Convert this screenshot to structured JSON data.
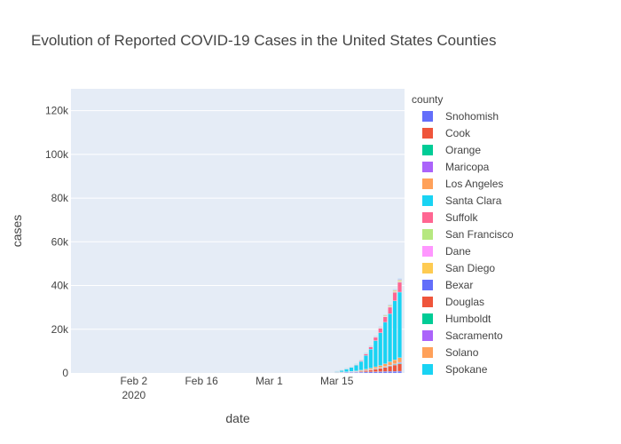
{
  "chart_data": {
    "type": "bar",
    "barmode": "stack",
    "title": "Evolution of Reported COVID-19 Cases in the United States Counties",
    "xlabel": "date",
    "ylabel": "cases",
    "x_ticks": [
      {
        "date": "2020-02-02",
        "label": "Feb 2",
        "sublabel": "2020"
      },
      {
        "date": "2020-02-16",
        "label": "Feb 16",
        "sublabel": ""
      },
      {
        "date": "2020-03-01",
        "label": "Mar 1",
        "sublabel": ""
      },
      {
        "date": "2020-03-15",
        "label": "Mar 15",
        "sublabel": ""
      }
    ],
    "y_ticks": [
      {
        "value": 0,
        "label": "0"
      },
      {
        "value": 20000,
        "label": "20k"
      },
      {
        "value": 40000,
        "label": "40k"
      },
      {
        "value": 60000,
        "label": "60k"
      },
      {
        "value": 80000,
        "label": "80k"
      },
      {
        "value": 100000,
        "label": "100k"
      },
      {
        "value": 120000,
        "label": "120k"
      }
    ],
    "xlim": [
      "2020-01-20",
      "2020-03-29"
    ],
    "ylim": [
      0,
      130000
    ],
    "grid": true,
    "legend_title": "county",
    "legend_position": "right",
    "categories": [
      "2020-03-15",
      "2020-03-16",
      "2020-03-17",
      "2020-03-18",
      "2020-03-19",
      "2020-03-20",
      "2020-03-21",
      "2020-03-22",
      "2020-03-23",
      "2020-03-24",
      "2020-03-25",
      "2020-03-26",
      "2020-03-27",
      "2020-03-28"
    ],
    "series": [
      {
        "name": "Snohomish",
        "color": "#636efa",
        "values": [
          200,
          250,
          280,
          320,
          350,
          400,
          450,
          500,
          550,
          600,
          650,
          700,
          750,
          800
        ]
      },
      {
        "name": "Cook",
        "color": "#EF553B",
        "values": [
          50,
          80,
          120,
          200,
          300,
          450,
          650,
          900,
          1200,
          1500,
          1900,
          2400,
          2900,
          3400
        ]
      },
      {
        "name": "Orange",
        "color": "#00cc96",
        "values": [
          20,
          25,
          30,
          40,
          50,
          60,
          80,
          100,
          120,
          150,
          180,
          220,
          260,
          300
        ]
      },
      {
        "name": "Maricopa",
        "color": "#ab63fa",
        "values": [
          10,
          15,
          20,
          30,
          40,
          60,
          80,
          110,
          140,
          180,
          220,
          270,
          320,
          380
        ]
      },
      {
        "name": "Los Angeles",
        "color": "#FFA15A",
        "values": [
          50,
          80,
          110,
          150,
          200,
          300,
          450,
          600,
          800,
          1000,
          1250,
          1500,
          1800,
          2100
        ]
      },
      {
        "name": "Santa Clara",
        "color": "#19d3f3",
        "values": [
          350,
          700,
          1250,
          1800,
          2600,
          4000,
          6300,
          8700,
          12000,
          15000,
          19000,
          22000,
          27000,
          30000
        ]
      },
      {
        "name": "Suffolk",
        "color": "#FF6692",
        "values": [
          50,
          100,
          150,
          200,
          300,
          400,
          700,
          1000,
          1500,
          2000,
          2500,
          3000,
          3800,
          4500
        ]
      },
      {
        "name": "San Francisco",
        "color": "#B6E880",
        "values": [
          30,
          35,
          40,
          50,
          60,
          70,
          90,
          110,
          130,
          160,
          200,
          240,
          280,
          320
        ]
      },
      {
        "name": "Dane",
        "color": "#FF97FF",
        "values": [
          5,
          8,
          10,
          15,
          20,
          25,
          30,
          40,
          50,
          60,
          70,
          80,
          90,
          100
        ]
      },
      {
        "name": "San Diego",
        "color": "#FECB52",
        "values": [
          20,
          30,
          40,
          60,
          80,
          100,
          130,
          170,
          220,
          270,
          330,
          400,
          480,
          560
        ]
      },
      {
        "name": "Bexar",
        "color": "#636efa",
        "values": [
          10,
          15,
          20,
          25,
          30,
          40,
          50,
          60,
          70,
          80,
          90,
          100,
          120,
          140
        ]
      },
      {
        "name": "Douglas",
        "color": "#EF553B",
        "values": [
          5,
          8,
          10,
          12,
          15,
          20,
          25,
          30,
          35,
          40,
          45,
          50,
          60,
          70
        ]
      },
      {
        "name": "Humboldt",
        "color": "#00cc96",
        "values": [
          2,
          3,
          4,
          5,
          6,
          7,
          8,
          9,
          10,
          12,
          14,
          16,
          18,
          20
        ]
      },
      {
        "name": "Sacramento",
        "color": "#ab63fa",
        "values": [
          20,
          30,
          40,
          50,
          60,
          80,
          100,
          120,
          140,
          170,
          200,
          230,
          270,
          310
        ]
      },
      {
        "name": "Solano",
        "color": "#FFA15A",
        "values": [
          10,
          12,
          14,
          16,
          18,
          20,
          25,
          30,
          35,
          40,
          45,
          50,
          55,
          60
        ]
      },
      {
        "name": "Spokane",
        "color": "#19d3f3",
        "values": [
          5,
          8,
          10,
          15,
          20,
          30,
          40,
          50,
          60,
          70,
          80,
          90,
          100,
          110
        ]
      }
    ]
  }
}
